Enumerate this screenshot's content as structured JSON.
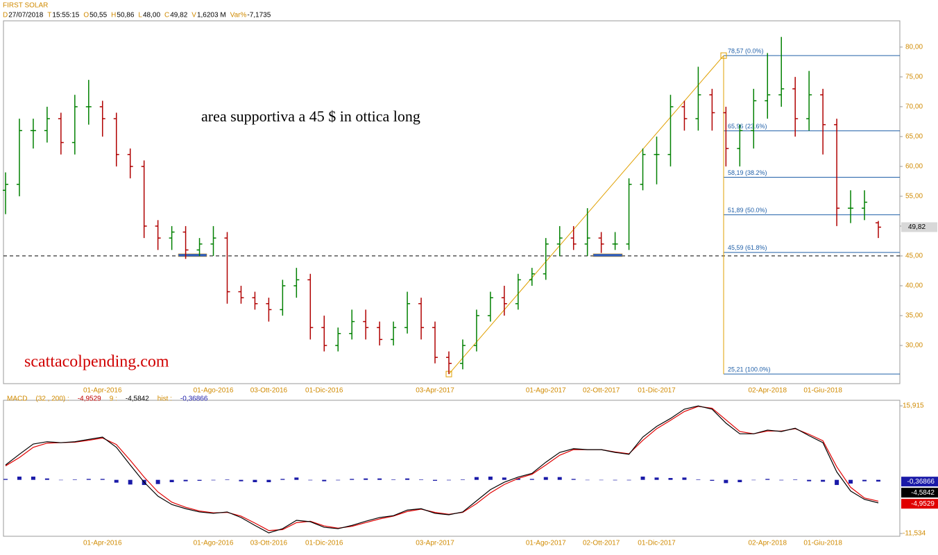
{
  "chart_data": {
    "type": "ohlc",
    "title": "FIRST SOLAR",
    "info": [
      {
        "key": "D",
        "value": "27/07/2018"
      },
      {
        "key": "T",
        "value": "15:55:15"
      },
      {
        "key": "O",
        "value": "50,55"
      },
      {
        "key": "H",
        "value": "50,86"
      },
      {
        "key": "L",
        "value": "48,00"
      },
      {
        "key": "C",
        "value": "49,82"
      },
      {
        "key": "V",
        "value": "1,6203 M"
      },
      {
        "key": "Var%",
        "value": "-7,1735"
      }
    ],
    "categories": [
      null,
      null,
      null,
      null,
      null,
      null,
      null,
      "01-Apr-2016",
      null,
      null,
      null,
      null,
      null,
      null,
      null,
      "01-Ago-2016",
      null,
      null,
      null,
      "03-Ott-2016",
      null,
      null,
      null,
      "01-Dic-2016",
      null,
      null,
      null,
      null,
      null,
      null,
      null,
      "03-Apr-2017",
      null,
      null,
      null,
      null,
      null,
      null,
      null,
      "01-Ago-2017",
      null,
      null,
      null,
      "02-Ott-2017",
      null,
      null,
      null,
      "01-Dic-2017",
      null,
      null,
      null,
      null,
      null,
      null,
      null,
      "02-Apr-2018",
      null,
      null,
      null,
      "01-Giu-2018",
      null,
      null,
      null,
      null
    ],
    "open": [
      56,
      57,
      66,
      66,
      68,
      64,
      70,
      70,
      68,
      62,
      60,
      50,
      48,
      49,
      46,
      47,
      48,
      39,
      38,
      37,
      36,
      40,
      41,
      33,
      30,
      32,
      34,
      33,
      31,
      33,
      37,
      33,
      28,
      27,
      30,
      35,
      38,
      37,
      41,
      42,
      47,
      48,
      47,
      48,
      47,
      47,
      57,
      62,
      62,
      70,
      68,
      72,
      69,
      63,
      66,
      71,
      72,
      73,
      68,
      72,
      67,
      53,
      53,
      50.55
    ],
    "high": [
      59,
      68,
      68,
      70,
      69,
      72,
      74.5,
      71,
      69,
      63,
      61,
      51,
      50,
      50,
      48,
      50,
      49,
      40,
      39,
      38,
      41,
      43,
      42,
      35,
      33,
      36,
      36,
      34,
      34,
      39,
      38,
      34,
      29,
      31,
      36,
      39,
      40,
      42,
      43,
      48,
      50,
      50,
      53,
      49,
      49,
      58,
      63,
      65,
      72,
      71,
      76.7,
      73,
      70,
      67,
      73,
      79,
      81.7,
      75,
      76,
      73,
      68,
      56,
      56,
      50.86
    ],
    "low": [
      52,
      55,
      63,
      64,
      62,
      62,
      67,
      65,
      60,
      58,
      48,
      46,
      46,
      44.5,
      45,
      45,
      37,
      37,
      36,
      34,
      35,
      38,
      31,
      29,
      29,
      31,
      31,
      30,
      30,
      32,
      31,
      27,
      25.21,
      26,
      29,
      34,
      35,
      36,
      40,
      41,
      45,
      46,
      45,
      45.5,
      46,
      46,
      56,
      57,
      60,
      66,
      66,
      66,
      60,
      60,
      63,
      68,
      70,
      65,
      66,
      62,
      50,
      50.5,
      51,
      48
    ],
    "close": [
      57,
      66,
      66,
      68,
      64,
      70,
      70,
      68,
      62,
      60,
      50,
      48,
      49,
      46,
      47,
      48,
      39,
      38,
      37,
      36,
      40,
      41,
      33,
      30,
      32,
      34,
      33,
      31,
      33,
      37,
      33,
      28,
      27,
      30,
      35,
      38,
      37,
      41,
      42,
      47,
      48,
      47,
      48,
      47,
      47,
      57,
      62,
      62,
      70,
      68,
      72,
      69,
      63,
      66,
      71,
      72,
      73,
      68,
      72,
      67,
      53,
      53,
      54,
      49.82
    ],
    "up_color": "#008000",
    "down_color": "#b00000",
    "ylim": [
      23.6,
      84.4
    ],
    "yticks": [
      {
        "value": 30,
        "label": "30,00"
      },
      {
        "value": 35,
        "label": "35,00"
      },
      {
        "value": 40,
        "label": "40,00"
      },
      {
        "value": 45,
        "label": "45,00"
      },
      {
        "value": 50,
        "label": "50,00"
      },
      {
        "value": 55,
        "label": "55,00"
      },
      {
        "value": 60,
        "label": "60,00"
      },
      {
        "value": 65,
        "label": "65,00"
      },
      {
        "value": 70,
        "label": "70,00"
      },
      {
        "value": 75,
        "label": "75,00"
      },
      {
        "value": 80,
        "label": "80,00"
      }
    ],
    "last_price": {
      "value": 49.82,
      "label": "49,82"
    },
    "support_level": 45,
    "fibonacci": {
      "color": "#1f5fa8",
      "levels": [
        {
          "value": 78.57,
          "label": "78,57 (0.0%)"
        },
        {
          "value": 65.96,
          "label": "65,96 (23.6%)"
        },
        {
          "value": 58.19,
          "label": "58,19 (38.2%)"
        },
        {
          "value": 51.89,
          "label": "51,89 (50.0%)"
        },
        {
          "value": 45.59,
          "label": "45,59 (61.8%)"
        },
        {
          "value": 25.21,
          "label": "25,21 (100.0%)"
        }
      ]
    },
    "annotations": [
      "area supportiva a 45 $ in ottica long",
      "scattacolpending.com"
    ],
    "macd": {
      "name": "MACD",
      "params": "(32 , 200) :",
      "macd_label": "-4,9529",
      "signal_name": "9 :",
      "signal_label": "-4,5842",
      "hist_name": "hist :",
      "hist_label": "-0,36866",
      "ylim": [
        -11.534,
        15.915
      ],
      "yticks": [
        {
          "value": -11.534,
          "label": "-11,534"
        },
        {
          "value": 15.915,
          "label": "15,915"
        }
      ],
      "series": [
        {
          "name": "MACD",
          "color": "#000000",
          "values": [
            3.2,
            5.5,
            7.7,
            8.2,
            8.0,
            8.2,
            8.7,
            9.2,
            7.0,
            3.2,
            -0.5,
            -3.5,
            -5.3,
            -6.2,
            -6.9,
            -7.2,
            -6.9,
            -8.1,
            -9.8,
            -11.4,
            -10.5,
            -8.7,
            -9.0,
            -10.2,
            -10.5,
            -9.8,
            -8.9,
            -8.1,
            -7.7,
            -6.5,
            -6.2,
            -7.2,
            -7.5,
            -6.9,
            -4.5,
            -2.1,
            -0.5,
            0.6,
            1.4,
            3.8,
            5.9,
            6.7,
            6.5,
            6.5,
            5.9,
            5.5,
            9.2,
            11.5,
            13.2,
            15.2,
            15.9,
            15.2,
            12.2,
            9.9,
            9.9,
            10.7,
            10.4,
            11.1,
            9.5,
            8.0,
            1.7,
            -2.4,
            -4.2,
            -4.9529
          ]
        },
        {
          "name": "signal",
          "color": "#e00000",
          "values": [
            3.0,
            4.8,
            7.0,
            7.9,
            8.0,
            8.1,
            8.5,
            9.0,
            7.6,
            4.2,
            0.6,
            -2.6,
            -4.8,
            -5.9,
            -6.7,
            -7.1,
            -7.0,
            -7.8,
            -9.3,
            -10.9,
            -10.7,
            -9.2,
            -8.9,
            -9.9,
            -10.4,
            -10.0,
            -9.2,
            -8.4,
            -7.8,
            -6.8,
            -6.3,
            -7.0,
            -7.4,
            -7.0,
            -5.1,
            -2.8,
            -1.0,
            0.3,
            1.2,
            3.2,
            5.3,
            6.5,
            6.5,
            6.5,
            6.0,
            5.6,
            8.5,
            11.0,
            12.8,
            14.7,
            15.8,
            15.4,
            12.9,
            10.4,
            9.9,
            10.5,
            10.5,
            11.0,
            9.8,
            8.4,
            2.8,
            -1.6,
            -3.9,
            -4.5842
          ]
        },
        {
          "name": "hist",
          "color": "#1a1aa8",
          "values": [
            0.2,
            0.7,
            0.7,
            0.3,
            0.0,
            0.1,
            0.2,
            0.2,
            -0.6,
            -1.0,
            -1.1,
            -0.9,
            -0.5,
            -0.3,
            -0.2,
            -0.1,
            0.1,
            -0.3,
            -0.5,
            -0.5,
            0.2,
            0.5,
            -0.1,
            -0.3,
            -0.1,
            0.2,
            0.3,
            0.3,
            0.1,
            0.3,
            0.1,
            -0.2,
            -0.1,
            0.1,
            0.6,
            0.7,
            0.5,
            0.3,
            0.2,
            0.6,
            0.6,
            0.2,
            0.0,
            0.0,
            -0.1,
            -0.1,
            0.7,
            0.5,
            0.4,
            0.5,
            0.1,
            -0.2,
            -0.7,
            -0.5,
            0.0,
            0.2,
            -0.1,
            0.1,
            -0.3,
            -0.4,
            -1.1,
            -0.8,
            -0.3,
            -0.36866
          ]
        }
      ]
    }
  }
}
